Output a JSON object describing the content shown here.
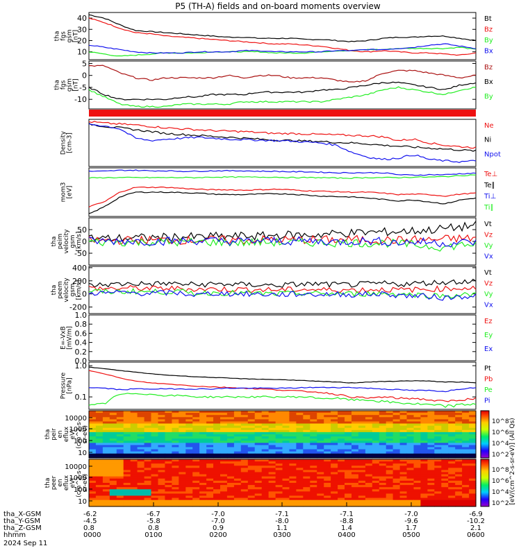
{
  "title": "P5 (TH-A) fields and on-board moments overview",
  "colors": {
    "black": "#000000",
    "red": "#ee1111",
    "green": "#22ee22",
    "blue": "#1111ee",
    "darkred": "#aa1111"
  },
  "chart_data": [
    {
      "type": "line",
      "panel": "B total",
      "ylabel": [
        "tha",
        "fgs",
        "gsm",
        "[nT]"
      ],
      "yticks": [
        "40",
        "30",
        "20",
        "10"
      ],
      "ylim": [
        3,
        45
      ],
      "series": [
        {
          "name": "Bt",
          "color": "#000000",
          "values": [
            43,
            40,
            34,
            29,
            28,
            27,
            26,
            25,
            24,
            23,
            23,
            22,
            22,
            22,
            21,
            21,
            20,
            19,
            20,
            22,
            23,
            23,
            24,
            24,
            22,
            20
          ]
        },
        {
          "name": "Bz",
          "color": "#ee1111",
          "values": [
            40,
            36,
            31,
            27,
            26,
            24,
            23,
            22,
            21,
            20,
            19,
            18,
            17,
            17,
            16,
            15,
            13,
            11,
            10,
            11,
            10,
            9,
            9,
            8,
            7,
            9
          ]
        },
        {
          "name": "By",
          "color": "#22ee22",
          "values": [
            10,
            8,
            6,
            7,
            8,
            9,
            9,
            9,
            10,
            10,
            10,
            10,
            9,
            9,
            9,
            10,
            11,
            11,
            12,
            12,
            13,
            13,
            13,
            13,
            14,
            12
          ]
        },
        {
          "name": "Bx",
          "color": "#1111ee",
          "values": [
            16,
            14,
            12,
            10,
            9,
            9,
            9,
            10,
            10,
            10,
            11,
            11,
            10,
            10,
            10,
            10,
            11,
            11,
            12,
            12,
            13,
            14,
            16,
            17,
            15,
            13
          ]
        }
      ]
    },
    {
      "type": "line",
      "panel": "B components",
      "ylabel": [
        "tha",
        "fgs",
        "gsm",
        "[nT]"
      ],
      "yticks": [
        "5",
        "0",
        "-5",
        "-10"
      ],
      "ylim": [
        -14,
        6
      ],
      "series": [
        {
          "name": "Bz",
          "color": "#aa1111",
          "values": [
            4,
            4,
            1,
            -1,
            -2,
            -1,
            -1,
            -1,
            -1,
            0,
            -1,
            0,
            0,
            -1,
            -1,
            -1,
            -2,
            -3,
            -2,
            1,
            2,
            2,
            1,
            0,
            -1,
            0
          ]
        },
        {
          "name": "Bx",
          "color": "#000000",
          "values": [
            -5,
            -8,
            -10,
            -10,
            -10,
            -10,
            -9,
            -9,
            -8,
            -8,
            -8,
            -7,
            -7,
            -7,
            -7,
            -6,
            -6,
            -5,
            -4,
            -3,
            -3,
            -4,
            -5,
            -6,
            -4,
            -3
          ]
        },
        {
          "name": "By",
          "color": "#22ee22",
          "values": [
            -6,
            -9,
            -12,
            -13,
            -13,
            -13,
            -12,
            -12,
            -12,
            -12,
            -11,
            -11,
            -11,
            -11,
            -11,
            -11,
            -10,
            -9,
            -8,
            -6,
            -5,
            -6,
            -7,
            -8,
            -6,
            -5
          ]
        }
      ]
    },
    {
      "type": "line",
      "panel": "Density",
      "ylabel": [
        "Density",
        "[cm-3]"
      ],
      "yticks": [],
      "ylim": [
        0,
        10
      ],
      "series": [
        {
          "name": "Ne",
          "color": "#ee1111",
          "values": [
            9.5,
            9.2,
            9,
            8.8,
            8.5,
            8.2,
            8,
            7.8,
            7.6,
            7.5,
            7.4,
            7.2,
            7,
            7,
            6.9,
            6.8,
            6.7,
            6.6,
            6.5,
            6.3,
            5.5,
            5.8,
            5,
            4.5,
            4.2,
            4
          ]
        },
        {
          "name": "Ni",
          "color": "#000000",
          "values": [
            9,
            8.5,
            8.2,
            7.8,
            7.4,
            7,
            6.8,
            6.6,
            6.4,
            6.2,
            6,
            5.8,
            5.6,
            5.5,
            5.4,
            5.3,
            5.1,
            5,
            4.8,
            4.5,
            4.3,
            4.1,
            3.9,
            3.7,
            3.5,
            3.3
          ]
        },
        {
          "name": "Npot",
          "color": "#1111ee",
          "values": [
            9,
            8.6,
            8,
            6,
            5.5,
            5.8,
            6,
            6.2,
            6,
            5.8,
            5.7,
            5.6,
            5.5,
            5.4,
            5.2,
            5,
            4.5,
            3,
            2,
            1.5,
            1.8,
            2.5,
            1.5,
            1.2,
            1,
            1.2
          ]
        }
      ]
    },
    {
      "type": "line",
      "panel": "Temperature",
      "ylabel": [
        "mom3",
        "[eV]"
      ],
      "yticks": [
        "1000"
      ],
      "ylim": [
        0,
        10
      ],
      "series": [
        {
          "name": "Te⊥",
          "color": "#ee1111",
          "values": [
            2,
            3,
            5,
            6,
            6,
            6,
            5.8,
            5.6,
            5.5,
            5.5,
            5.4,
            5.5,
            5.6,
            5.5,
            5.3,
            5.2,
            5.1,
            5,
            5,
            4.8,
            4.5,
            4.6,
            4.5,
            4.2,
            4.6,
            4.8
          ]
        },
        {
          "name": "Te∥",
          "color": "#000000",
          "values": [
            0.5,
            2,
            4,
            5,
            5,
            5,
            4.9,
            4.8,
            4.6,
            4.5,
            4.5,
            4.6,
            4.7,
            4.6,
            4.4,
            4.2,
            4.1,
            4,
            3.8,
            3.5,
            3.2,
            3.4,
            3,
            2.6,
            3.4,
            3.8
          ]
        },
        {
          "name": "Ti⊥",
          "color": "#1111ee",
          "values": [
            9.3,
            9.3,
            9.5,
            9.5,
            9.4,
            9.4,
            9.3,
            9.3,
            9.4,
            9.4,
            9.4,
            9.3,
            9.3,
            9.2,
            9.2,
            9.1,
            9,
            9,
            9,
            9,
            8.6,
            8.5,
            8.6,
            8.6,
            8.8,
            8.9
          ]
        },
        {
          "name": "Ti∥",
          "color": "#22ee22",
          "values": [
            7.9,
            8,
            8,
            8,
            8,
            8,
            8,
            8,
            8.1,
            8.1,
            8.1,
            8.1,
            8.1,
            8,
            8,
            8,
            7.9,
            7.9,
            8,
            8,
            8,
            8.1,
            8.1,
            8.2,
            8.4,
            8.6
          ]
        }
      ]
    },
    {
      "type": "line",
      "panel": "Ion velocity",
      "ylabel": [
        "tha",
        "peim",
        "velocity",
        "gsm",
        "[km/s]"
      ],
      "yticks": [
        "50",
        "0",
        "-50"
      ],
      "ylim": [
        -100,
        100
      ],
      "series": [
        {
          "name": "Vt",
          "color": "#000000",
          "values": [
            15,
            12,
            14,
            15,
            16,
            18,
            20,
            18,
            22,
            20,
            24,
            22,
            26,
            28,
            26,
            30,
            34,
            36,
            38,
            40,
            42,
            45,
            48,
            55,
            60,
            70
          ]
        },
        {
          "name": "Vz",
          "color": "#ee1111",
          "values": [
            5,
            4,
            5,
            5,
            6,
            6,
            5,
            6,
            7,
            6,
            5,
            7,
            8,
            6,
            7,
            8,
            6,
            8,
            7,
            6,
            5,
            8,
            6,
            10,
            12,
            14
          ]
        },
        {
          "name": "Vy",
          "color": "#22ee22",
          "values": [
            -2,
            -3,
            -2,
            -4,
            -2,
            -3,
            -4,
            -2,
            -3,
            -4,
            -5,
            -3,
            -4,
            -6,
            -5,
            -4,
            -6,
            -5,
            -8,
            -6,
            -10,
            -15,
            -20,
            -25,
            -15,
            -10
          ]
        },
        {
          "name": "Vx",
          "color": "#1111ee",
          "values": [
            2,
            1,
            3,
            2,
            0,
            2,
            1,
            3,
            2,
            1,
            0,
            2,
            3,
            1,
            2,
            0,
            -2,
            1,
            2,
            0,
            -5,
            -2,
            -3,
            -8,
            -5,
            -3
          ]
        }
      ]
    },
    {
      "type": "line",
      "panel": "Electron velocity",
      "ylabel": [
        "tha",
        "peem",
        "velocity",
        "gsm",
        "[km/s]"
      ],
      "yticks": [
        "400",
        "200",
        "0",
        "-200"
      ],
      "ylim": [
        -300,
        420
      ],
      "series": [
        {
          "name": "Vt",
          "color": "#000000",
          "values": [
            130,
            140,
            150,
            160,
            150,
            160,
            150,
            140,
            150,
            150,
            140,
            140,
            130,
            140,
            150,
            150,
            140,
            140,
            150,
            160,
            150,
            160,
            170,
            180,
            190,
            200
          ]
        },
        {
          "name": "Vz",
          "color": "#ee1111",
          "values": [
            90,
            80,
            85,
            90,
            80,
            85,
            80,
            70,
            75,
            70,
            70,
            65,
            60,
            65,
            70,
            60,
            65,
            60,
            65,
            70,
            60,
            65,
            70,
            80,
            90,
            90
          ]
        },
        {
          "name": "Vy",
          "color": "#22ee22",
          "values": [
            40,
            30,
            35,
            40,
            30,
            35,
            30,
            10,
            20,
            15,
            10,
            5,
            0,
            5,
            10,
            0,
            5,
            0,
            5,
            10,
            0,
            -10,
            -20,
            -30,
            -20,
            -10
          ]
        },
        {
          "name": "Vx",
          "color": "#1111ee",
          "values": [
            20,
            10,
            20,
            15,
            10,
            15,
            10,
            -20,
            10,
            5,
            0,
            -5,
            -10,
            -5,
            0,
            -10,
            -5,
            -10,
            -5,
            0,
            -20,
            -30,
            -40,
            -60,
            -40,
            -20
          ]
        }
      ]
    },
    {
      "type": "line",
      "panel": "E field",
      "ylabel": [
        "E=-VxB",
        "[mV/m]"
      ],
      "yticks": [
        "1.0",
        "0.8",
        "0.6",
        "0.4",
        "0.2",
        "0.0"
      ],
      "ylim": [
        0,
        1
      ],
      "series": [
        {
          "name": "Ez",
          "color": "#ee1111",
          "values": []
        },
        {
          "name": "Ey",
          "color": "#22ee22",
          "values": []
        },
        {
          "name": "Ex",
          "color": "#1111ee",
          "values": []
        }
      ]
    },
    {
      "type": "line",
      "panel": "Pressure",
      "ylabel": [
        "Pressure",
        "[nPa]"
      ],
      "yticks": [
        "1.0",
        "0.1"
      ],
      "ylim": [
        0.04,
        1.3
      ],
      "log": true,
      "series": [
        {
          "name": "Pt",
          "color": "#000000",
          "values": [
            0.9,
            0.8,
            0.7,
            0.62,
            0.55,
            0.5,
            0.47,
            0.44,
            0.42,
            0.4,
            0.38,
            0.37,
            0.36,
            0.35,
            0.33,
            0.31,
            0.3,
            0.28,
            0.3,
            0.31,
            0.32,
            0.33,
            0.32,
            0.3,
            0.3,
            0.28
          ]
        },
        {
          "name": "Pb",
          "color": "#ee1111",
          "values": [
            0.7,
            0.55,
            0.4,
            0.32,
            0.28,
            0.26,
            0.24,
            0.22,
            0.21,
            0.2,
            0.19,
            0.18,
            0.17,
            0.16,
            0.15,
            0.14,
            0.12,
            0.1,
            0.09,
            0.1,
            0.09,
            0.09,
            0.08,
            0.07,
            0.08,
            0.09
          ]
        },
        {
          "name": "Pe",
          "color": "#22ee22",
          "values": [
            0.05,
            0.06,
            0.12,
            0.13,
            0.12,
            0.11,
            0.11,
            0.1,
            0.1,
            0.1,
            0.1,
            0.1,
            0.1,
            0.1,
            0.1,
            0.09,
            0.09,
            0.08,
            0.08,
            0.07,
            0.065,
            0.06,
            0.055,
            0.05,
            0.055,
            0.06
          ]
        },
        {
          "name": "Pi",
          "color": "#1111ee",
          "values": [
            0.2,
            0.19,
            0.17,
            0.18,
            0.18,
            0.18,
            0.18,
            0.18,
            0.18,
            0.19,
            0.19,
            0.19,
            0.19,
            0.19,
            0.2,
            0.2,
            0.2,
            0.2,
            0.19,
            0.18,
            0.17,
            0.16,
            0.16,
            0.15,
            0.18,
            0.2
          ]
        }
      ]
    },
    {
      "type": "heatmap",
      "panel": "Ion energy spectrogram",
      "ylabel": [
        "tha",
        "peir",
        "en",
        "eflux",
        "eV/",
        "(cm^2-s-",
        "sr-eV)"
      ],
      "yticks": [
        "10000",
        "1000",
        "100",
        "10"
      ]
    },
    {
      "type": "heatmap",
      "panel": "Electron energy spectrogram",
      "ylabel": [
        "tha",
        "peer",
        "en",
        "eflux",
        "eV/",
        "(cm^2-s-",
        "sr-eV)"
      ],
      "yticks": [
        "10000",
        "1000",
        "100",
        "10"
      ]
    }
  ],
  "colorbar": {
    "label": "[eV/(cm^2-s-sr-eV)] (All Qs)",
    "ion_ticks": [
      "10^8",
      "10^6",
      "10^4",
      "10^2"
    ],
    "ele_ticks": [
      "10^8",
      "10^6",
      "10^4",
      "10^2"
    ]
  },
  "x_axis": {
    "rows": [
      {
        "label": "tha_X-GSM",
        "values": [
          "-6.2",
          "-6.7",
          "-7.0",
          "-7.1",
          "-7.1",
          "-7.0",
          "-6.9"
        ]
      },
      {
        "label": "tha_Y-GSM",
        "values": [
          "-4.5",
          "-5.8",
          "-7.0",
          "-8.0",
          "-8.8",
          "-9.6",
          "-10.2"
        ]
      },
      {
        "label": "tha_Z-GSM",
        "values": [
          "0.8",
          "0.8",
          "0.9",
          "1.1",
          "1.4",
          "1.7",
          "2.1"
        ]
      },
      {
        "label": "hhmm",
        "values": [
          "0000",
          "0100",
          "0200",
          "0300",
          "0400",
          "0500",
          "0600"
        ]
      }
    ],
    "date": "2024 Sep 11"
  }
}
